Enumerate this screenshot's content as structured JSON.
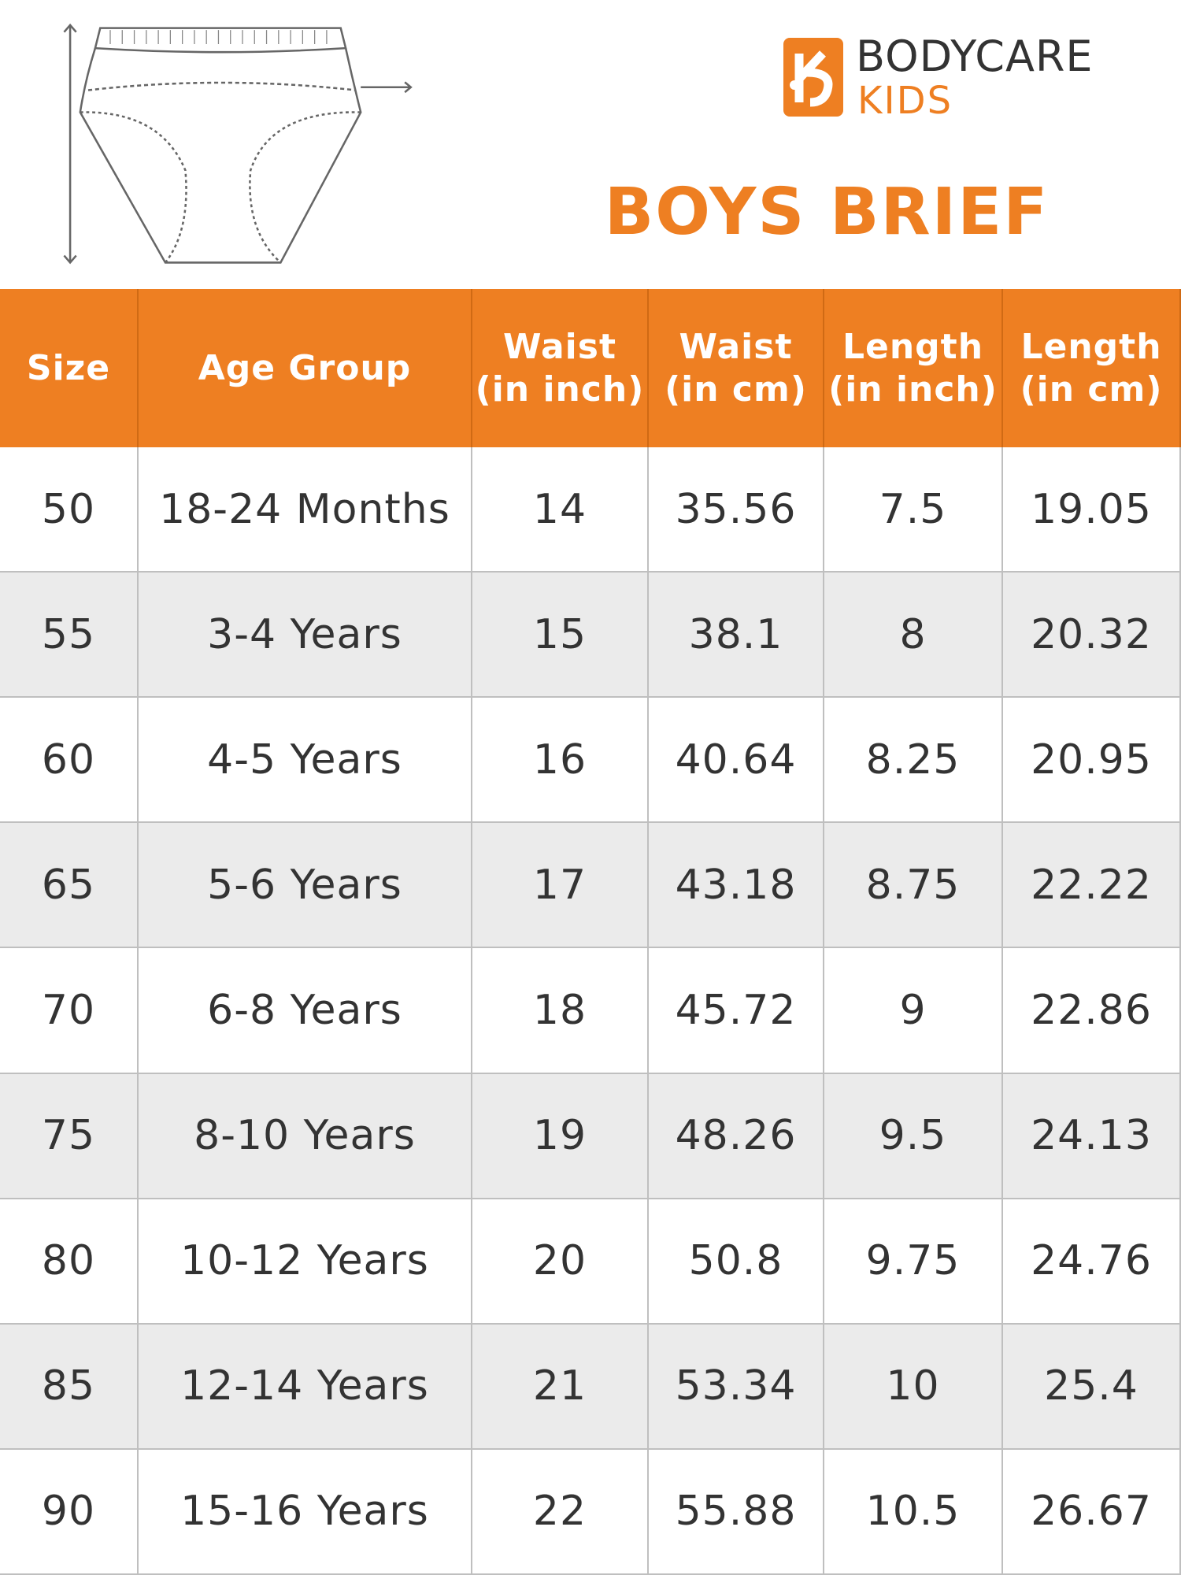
{
  "header": {
    "brand": "BODYCARE",
    "sub_brand": "KIDS",
    "title": "BOYS BRIEF"
  },
  "table": {
    "columns": [
      [
        "Size"
      ],
      [
        "Age Group"
      ],
      [
        "Waist",
        "(in inch)"
      ],
      [
        "Waist",
        "(in cm)"
      ],
      [
        "Length",
        "(in inch)"
      ],
      [
        "Length",
        "(in cm)"
      ]
    ],
    "rows": [
      [
        50,
        "18-24 Months",
        14,
        35.56,
        7.5,
        19.05
      ],
      [
        55,
        "3-4 Years",
        15,
        38.1,
        8,
        20.32
      ],
      [
        60,
        "4-5 Years",
        16,
        40.64,
        8.25,
        20.95
      ],
      [
        65,
        "5-6 Years",
        17,
        43.18,
        8.75,
        22.22
      ],
      [
        70,
        "6-8 Years",
        18,
        45.72,
        9,
        22.86
      ],
      [
        75,
        "8-10 Years",
        19,
        48.26,
        9.5,
        24.13
      ],
      [
        80,
        "10-12 Years",
        20,
        50.8,
        9.75,
        24.76
      ],
      [
        85,
        "12-14 Years",
        21,
        53.34,
        10,
        25.4
      ],
      [
        90,
        "15-16 Years",
        22,
        55.88,
        10.5,
        26.67
      ]
    ]
  }
}
